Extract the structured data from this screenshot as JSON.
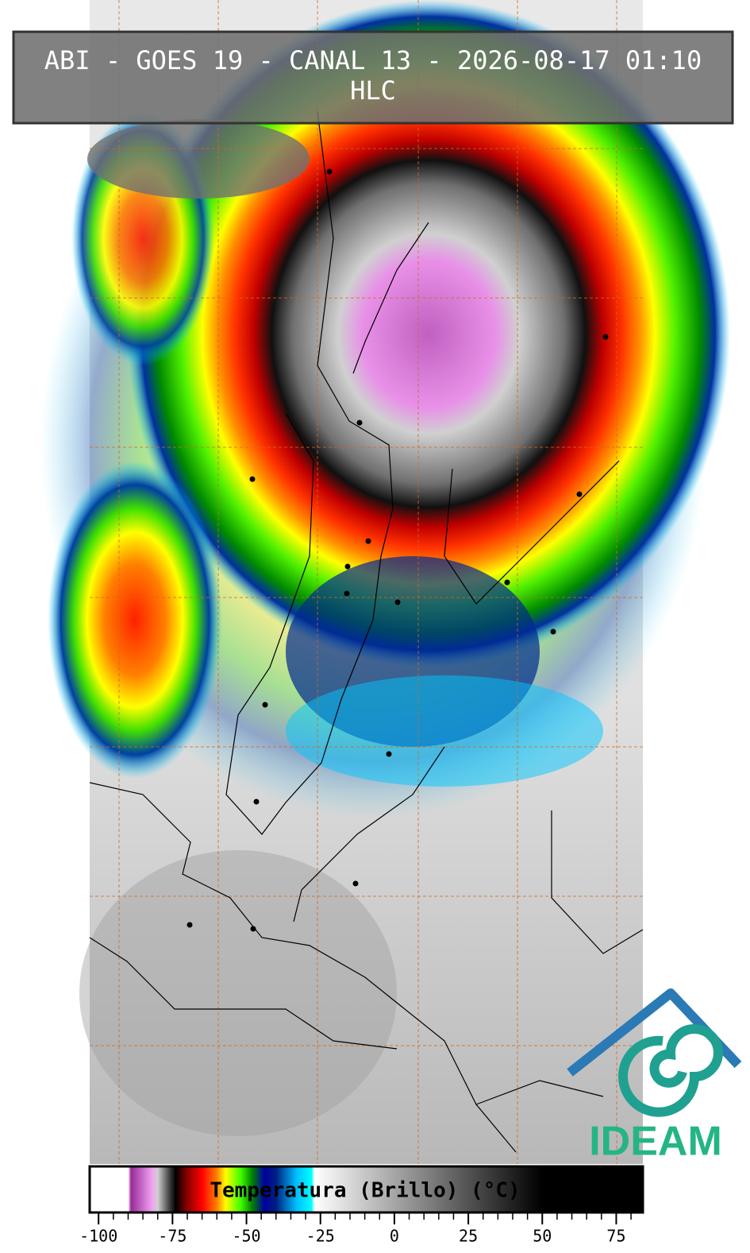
{
  "header": {
    "title": "ABI - GOES 19 - CANAL 13 - 2026-08-17 01:10",
    "subtitle": "HLC"
  },
  "chart_data": {
    "type": "colorbar",
    "title": "Temperatura (Brillo) (°C)",
    "xlim": [
      -103,
      84
    ],
    "xticks": [
      -100,
      -75,
      -50,
      -25,
      0,
      25,
      50,
      75
    ],
    "colorscale": [
      {
        "value": -103,
        "color": "#ffffff"
      },
      {
        "value": -90,
        "color": "#ffffff"
      },
      {
        "value": -89,
        "color": "#9a2a9a"
      },
      {
        "value": -82,
        "color": "#f0a0f0"
      },
      {
        "value": -80,
        "color": "#d0d0d0"
      },
      {
        "value": -76,
        "color": "#404040"
      },
      {
        "value": -74,
        "color": "#000000"
      },
      {
        "value": -70,
        "color": "#8b0000"
      },
      {
        "value": -65,
        "color": "#ff0000"
      },
      {
        "value": -60,
        "color": "#ff8000"
      },
      {
        "value": -57,
        "color": "#ffff00"
      },
      {
        "value": -52,
        "color": "#40ff00"
      },
      {
        "value": -48,
        "color": "#008000"
      },
      {
        "value": -44,
        "color": "#0000a0"
      },
      {
        "value": -40,
        "color": "#002080"
      },
      {
        "value": -33,
        "color": "#00c0ff"
      },
      {
        "value": -28,
        "color": "#00ffff"
      },
      {
        "value": -27,
        "color": "#ffffff"
      },
      {
        "value": 50,
        "color": "#000000"
      },
      {
        "value": 84,
        "color": "#000000"
      }
    ]
  },
  "logo": {
    "text": "IDEAM"
  }
}
